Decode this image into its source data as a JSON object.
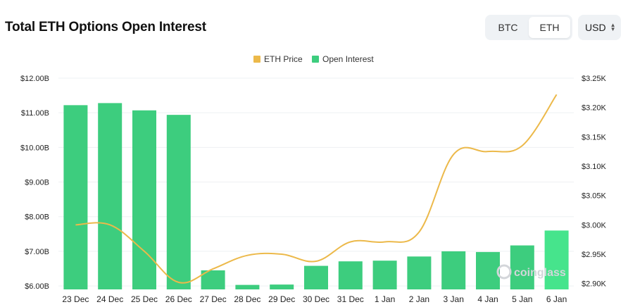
{
  "header": {
    "title": "Total ETH Options Open Interest",
    "asset_buttons": [
      "BTC",
      "ETH"
    ],
    "active_asset": "ETH",
    "currency": "USD"
  },
  "watermark": "coinglass",
  "colors": {
    "bar": "#3dcd7e",
    "bar_last": "#46e48c",
    "line": "#ecb94a",
    "grid": "#eef0f3",
    "axis_text": "#222222"
  },
  "chart_data": {
    "type": "bar",
    "categories": [
      "23 Dec",
      "24 Dec",
      "25 Dec",
      "26 Dec",
      "27 Dec",
      "28 Dec",
      "29 Dec",
      "30 Dec",
      "31 Dec",
      "1 Jan",
      "2 Jan",
      "3 Jan",
      "4 Jan",
      "5 Jan",
      "6 Jan"
    ],
    "series": [
      {
        "name": "Open Interest",
        "type": "bar",
        "axis": "left",
        "values": [
          11.22,
          11.28,
          11.07,
          10.94,
          6.45,
          6.03,
          6.04,
          6.58,
          6.71,
          6.73,
          6.85,
          7.0,
          6.98,
          7.17,
          7.6
        ]
      },
      {
        "name": "ETH Price",
        "type": "line",
        "axis": "right",
        "values": [
          3000,
          3000,
          2955,
          2902,
          2925,
          2948,
          2950,
          2938,
          2971,
          2971,
          2988,
          3120,
          3125,
          3135,
          3222
        ]
      }
    ],
    "left_axis": {
      "ticks": [
        "$6.00B",
        "$7.00B",
        "$8.00B",
        "$9.00B",
        "$10.00B",
        "$11.00B",
        "$12.00B"
      ],
      "range": [
        5.9,
        12.0
      ]
    },
    "right_axis": {
      "ticks": [
        "$2.90K",
        "$2.95K",
        "$3.00K",
        "$3.05K",
        "$3.10K",
        "$3.15K",
        "$3.20K",
        "$3.25K"
      ],
      "range": [
        2890,
        3250
      ]
    },
    "legend": {
      "position": "top-center",
      "items": [
        "ETH Price",
        "Open Interest"
      ]
    },
    "grid": true
  }
}
